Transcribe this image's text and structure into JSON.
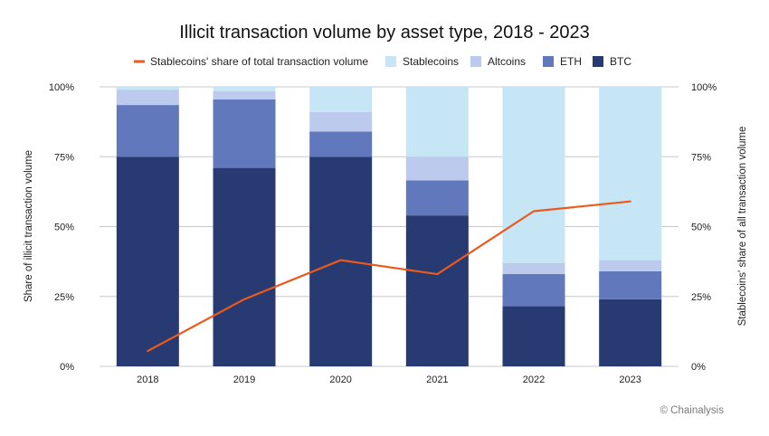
{
  "chart_data": {
    "type": "bar",
    "stacked": true,
    "title": "Illicit transaction volume by asset type, 2018 - 2023",
    "categories": [
      "2018",
      "2019",
      "2020",
      "2021",
      "2022",
      "2023"
    ],
    "series": [
      {
        "name": "BTC",
        "color": "#283a72",
        "values": [
          75,
          71,
          75,
          54,
          21.5,
          24
        ]
      },
      {
        "name": "ETH",
        "color": "#6278bd",
        "values": [
          18.5,
          24.5,
          9,
          12.5,
          11.5,
          10
        ]
      },
      {
        "name": "Altcoins",
        "color": "#bccbed",
        "values": [
          5.5,
          3,
          7,
          8.5,
          4,
          4
        ]
      },
      {
        "name": "Stablecoins",
        "color": "#c6e5f5",
        "values": [
          1,
          1.5,
          9,
          25,
          63,
          62
        ]
      }
    ],
    "line_series": {
      "name": "Stablecoins' share of total transaction volume",
      "color": "#ea5a1c",
      "axis": "right",
      "values": [
        5.5,
        24,
        38,
        33,
        55.5,
        59
      ]
    },
    "ylabel": "Share of illicit transaction volume",
    "y2label": "Stablecoins' share of all transaction volume",
    "ylim": [
      0,
      100
    ],
    "y2lim": [
      0,
      100
    ],
    "y_ticks": [
      "0%",
      "25%",
      "50%",
      "75%",
      "100%"
    ],
    "y2_ticks": [
      "0%",
      "25%",
      "50%",
      "75%",
      "100%"
    ],
    "grid": true,
    "legend_position": "top",
    "legend_order": [
      "Stablecoins' share of total transaction volume",
      "Stablecoins",
      "Altcoins",
      "ETH",
      "BTC"
    ]
  },
  "credit": "© Chainalysis"
}
